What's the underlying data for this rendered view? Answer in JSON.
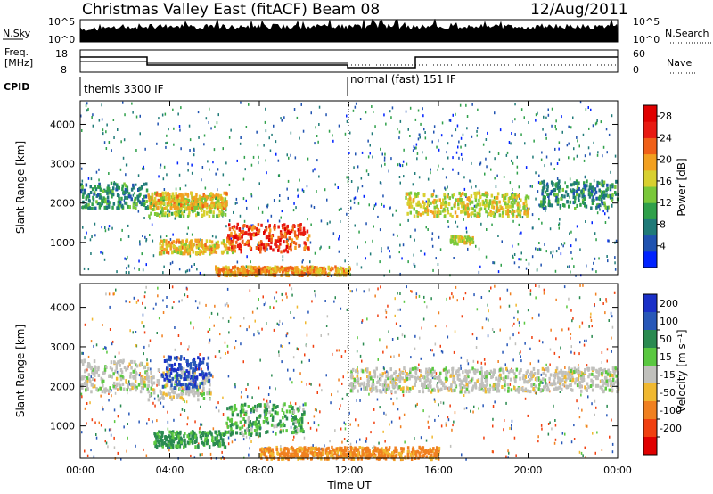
{
  "header": {
    "title": "Christmas Valley East (fitACF)",
    "beam": "Beam 08",
    "date": "12/Aug/2011"
  },
  "top_strip": {
    "left_label": "N.Sky",
    "right_label": "N.Search",
    "ticks_left": [
      "10^5",
      "10^0"
    ],
    "ticks_right": [
      "10^5",
      "10^0"
    ]
  },
  "freq_strip": {
    "left_label_1": "Freq.",
    "left_label_2": "[MHz]",
    "right_label": "Nave",
    "ticks_left": [
      "18",
      "8"
    ],
    "ticks_right": [
      "60",
      "0"
    ]
  },
  "cpid": {
    "label": "CPID",
    "modes": [
      "themis 3300 IF",
      "normal (fast) 151 IF"
    ]
  },
  "chart_data": [
    {
      "type": "heatmap",
      "name": "power",
      "xlabel": "",
      "ylabel": "Slant Range [km]",
      "x_ticks": [
        "00:00",
        "04:00",
        "08:00",
        "12:00",
        "16:00",
        "20:00",
        "00:00"
      ],
      "x_range_hours": [
        0,
        24
      ],
      "ylim": [
        180,
        4600
      ],
      "y_ticks": [
        1000,
        2000,
        3000,
        4000
      ],
      "colorbar": {
        "label": "Power [dB]",
        "ticks": [
          4,
          8,
          12,
          16,
          20,
          24,
          28
        ],
        "range": [
          0,
          30
        ],
        "colors": [
          "#0022ff",
          "#1f52b0",
          "#1f7a78",
          "#2fa04a",
          "#7ac83a",
          "#d8d030",
          "#f2a020",
          "#f06018",
          "#e81a12",
          "#e00000"
        ]
      },
      "features": [
        {
          "t0": 0.0,
          "t1": 3.0,
          "r0": 1900,
          "r1": 2550,
          "level": 9
        },
        {
          "t0": 3.0,
          "t1": 6.5,
          "r0": 1700,
          "r1": 2200,
          "level": 14
        },
        {
          "t0": 3.0,
          "t1": 6.5,
          "r0": 1900,
          "r1": 2300,
          "level": 18
        },
        {
          "t0": 3.5,
          "t1": 6.8,
          "r0": 750,
          "r1": 1100,
          "level": 18
        },
        {
          "t0": 6.5,
          "t1": 10.2,
          "r0": 800,
          "r1": 1500,
          "level": 24
        },
        {
          "t0": 6.0,
          "t1": 12.0,
          "r0": 200,
          "r1": 420,
          "level": 20
        },
        {
          "t0": 14.5,
          "t1": 20.0,
          "r0": 1700,
          "r1": 2300,
          "level": 16
        },
        {
          "t0": 20.5,
          "t1": 24.0,
          "r0": 1900,
          "r1": 2600,
          "level": 9
        },
        {
          "t0": 16.5,
          "t1": 17.5,
          "r0": 1000,
          "r1": 1200,
          "level": 16
        }
      ]
    },
    {
      "type": "heatmap",
      "name": "velocity",
      "xlabel": "Time UT",
      "ylabel": "Slant Range [km]",
      "x_ticks": [
        "00:00",
        "04:00",
        "08:00",
        "12:00",
        "16:00",
        "20:00",
        "00:00"
      ],
      "x_range_hours": [
        0,
        24
      ],
      "ylim": [
        180,
        4600
      ],
      "y_ticks": [
        1000,
        2000,
        3000,
        4000
      ],
      "colorbar": {
        "label": "Velocity [m s⁻¹]",
        "ticks": [
          200,
          100,
          50,
          15,
          -15,
          -50,
          -100,
          -200
        ],
        "colors": [
          "#1a30c8",
          "#2858b8",
          "#2a8a50",
          "#5ac840",
          "#c0c0bc",
          "#f0b830",
          "#f08020",
          "#f04010",
          "#e00000"
        ]
      },
      "features": [
        {
          "t0": 0.0,
          "t1": 3.0,
          "r0": 1900,
          "r1": 2700,
          "v": 0
        },
        {
          "t0": 3.0,
          "t1": 5.8,
          "r0": 1700,
          "r1": 2500,
          "v": 0
        },
        {
          "t0": 3.5,
          "t1": 5.8,
          "r0": 2000,
          "r1": 2800,
          "v": 150
        },
        {
          "t0": 3.2,
          "t1": 6.5,
          "r0": 500,
          "r1": 900,
          "v": 40
        },
        {
          "t0": 6.5,
          "t1": 10.0,
          "r0": 800,
          "r1": 1600,
          "v": 30
        },
        {
          "t0": 12.0,
          "t1": 24.0,
          "r0": 1900,
          "r1": 2500,
          "v": 0
        },
        {
          "t0": 8.0,
          "t1": 16.0,
          "r0": 200,
          "r1": 500,
          "v": -40
        }
      ]
    }
  ]
}
